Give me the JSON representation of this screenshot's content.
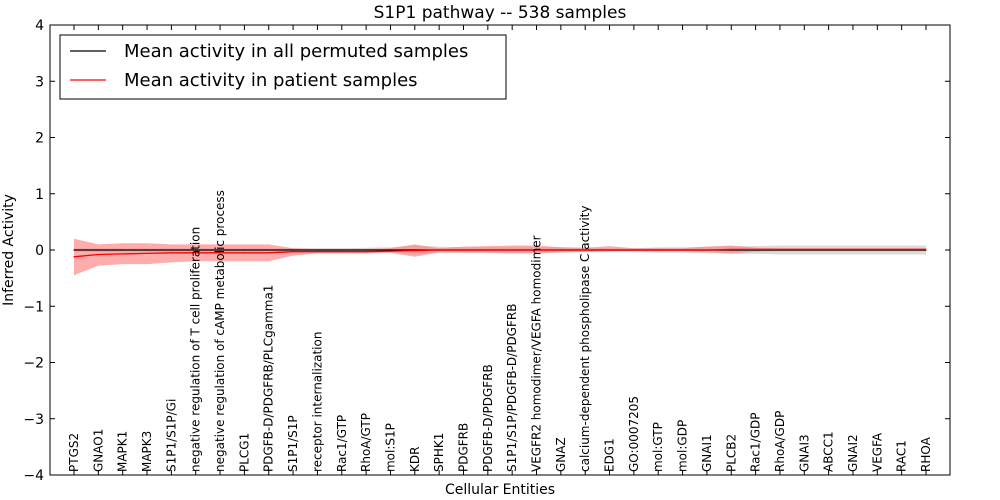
{
  "chart_data": {
    "type": "line",
    "title": "S1P1 pathway -- 538 samples",
    "xlabel": "Cellular Entities",
    "ylabel": "Inferred Activity",
    "ylim": [
      -4,
      4
    ],
    "yticks": [
      -4,
      -3,
      -2,
      -1,
      0,
      1,
      2,
      3,
      4
    ],
    "yticklabels": [
      "−4",
      "−3",
      "−2",
      "−1",
      "0",
      "1",
      "2",
      "3",
      "4"
    ],
    "grid": false,
    "legend_position": "top-left",
    "categories": [
      "PTGS2",
      "GNAO1",
      "MAPK1",
      "MAPK3",
      "S1P1/S1P/Gi",
      "negative regulation of T cell proliferation",
      "negative regulation of cAMP metabolic process",
      "PLCG1",
      "PDGFB-D/PDGFRB/PLCgamma1",
      "S1P1/S1P",
      "receptor internalization",
      "Rac1/GTP",
      "RhoA/GTP",
      "mol:S1P",
      "KDR",
      "SPHK1",
      "PDGFRB",
      "PDGFB-D/PDGFRB",
      "S1P1/S1P/PDGFB-D/PDGFRB",
      "VEGFR2 homodimer/VEGFA homodimer",
      "GNAZ",
      "calcium-dependent phospholipase C activity",
      "EDG1",
      "GO:0007205",
      "mol:GTP",
      "mol:GDP",
      "GNAI1",
      "PLCB2",
      "Rac1/GDP",
      "RhoA/GDP",
      "GNAI3",
      "ABCC1",
      "GNAI2",
      "VEGFA",
      "RAC1",
      "RHOA"
    ],
    "series": [
      {
        "name": "Mean activity in all permuted samples",
        "color": "#000000",
        "values": [
          0,
          0,
          0,
          0,
          0,
          0,
          0,
          0,
          0,
          0,
          0,
          0,
          0,
          0,
          0,
          0,
          0,
          0,
          0,
          0,
          0,
          0,
          0,
          0,
          0,
          0,
          0,
          0,
          0,
          0,
          0,
          0,
          0,
          0,
          0,
          0
        ],
        "lower": [
          -0.03,
          -0.03,
          -0.03,
          -0.03,
          -0.03,
          -0.03,
          -0.03,
          -0.03,
          -0.03,
          -0.03,
          -0.03,
          -0.03,
          -0.04,
          -0.05,
          -0.08,
          -0.06,
          -0.05,
          -0.05,
          -0.05,
          -0.05,
          -0.05,
          -0.04,
          -0.03,
          -0.03,
          -0.05,
          -0.05,
          -0.06,
          -0.07,
          -0.07,
          -0.08,
          -0.08,
          -0.08,
          -0.08,
          -0.08,
          -0.08,
          -0.08
        ],
        "upper": [
          0.03,
          0.03,
          0.03,
          0.03,
          0.03,
          0.03,
          0.03,
          0.03,
          0.03,
          0.03,
          0.03,
          0.03,
          0.04,
          0.05,
          0.08,
          0.06,
          0.05,
          0.05,
          0.05,
          0.05,
          0.05,
          0.04,
          0.03,
          0.03,
          0.05,
          0.05,
          0.06,
          0.07,
          0.07,
          0.08,
          0.08,
          0.08,
          0.08,
          0.08,
          0.08,
          0.08
        ]
      },
      {
        "name": "Mean activity in patient samples",
        "color": "#ff0000",
        "fill": "#ff8080",
        "values": [
          -0.12,
          -0.08,
          -0.07,
          -0.06,
          -0.05,
          -0.05,
          -0.05,
          -0.05,
          -0.05,
          -0.03,
          -0.03,
          -0.03,
          -0.03,
          -0.02,
          -0.01,
          0,
          0,
          0,
          0,
          0,
          0,
          0,
          0,
          0,
          0,
          0,
          0,
          0.01,
          0.01,
          0.01,
          0.01,
          0.01,
          0.01,
          0.01,
          0.01,
          0.01
        ],
        "lower": [
          -0.45,
          -0.28,
          -0.25,
          -0.25,
          -0.22,
          -0.2,
          -0.2,
          -0.2,
          -0.2,
          -0.1,
          -0.06,
          -0.06,
          -0.06,
          -0.05,
          -0.12,
          -0.04,
          -0.05,
          -0.05,
          -0.06,
          -0.06,
          -0.04,
          -0.03,
          -0.02,
          -0.02,
          -0.02,
          -0.02,
          -0.04,
          -0.06,
          -0.03,
          -0.02,
          -0.02,
          -0.02,
          -0.02,
          -0.02,
          -0.02,
          -0.02
        ],
        "upper": [
          0.2,
          0.1,
          0.12,
          0.12,
          0.1,
          0.1,
          0.1,
          0.1,
          0.1,
          0.03,
          0.02,
          0.02,
          0.02,
          0.03,
          0.1,
          0.03,
          0.06,
          0.07,
          0.08,
          0.08,
          0.05,
          0.04,
          0.07,
          0.03,
          0.03,
          0.03,
          0.06,
          0.08,
          0.04,
          0.03,
          0.03,
          0.03,
          0.03,
          0.03,
          0.03,
          0.03
        ]
      }
    ]
  }
}
